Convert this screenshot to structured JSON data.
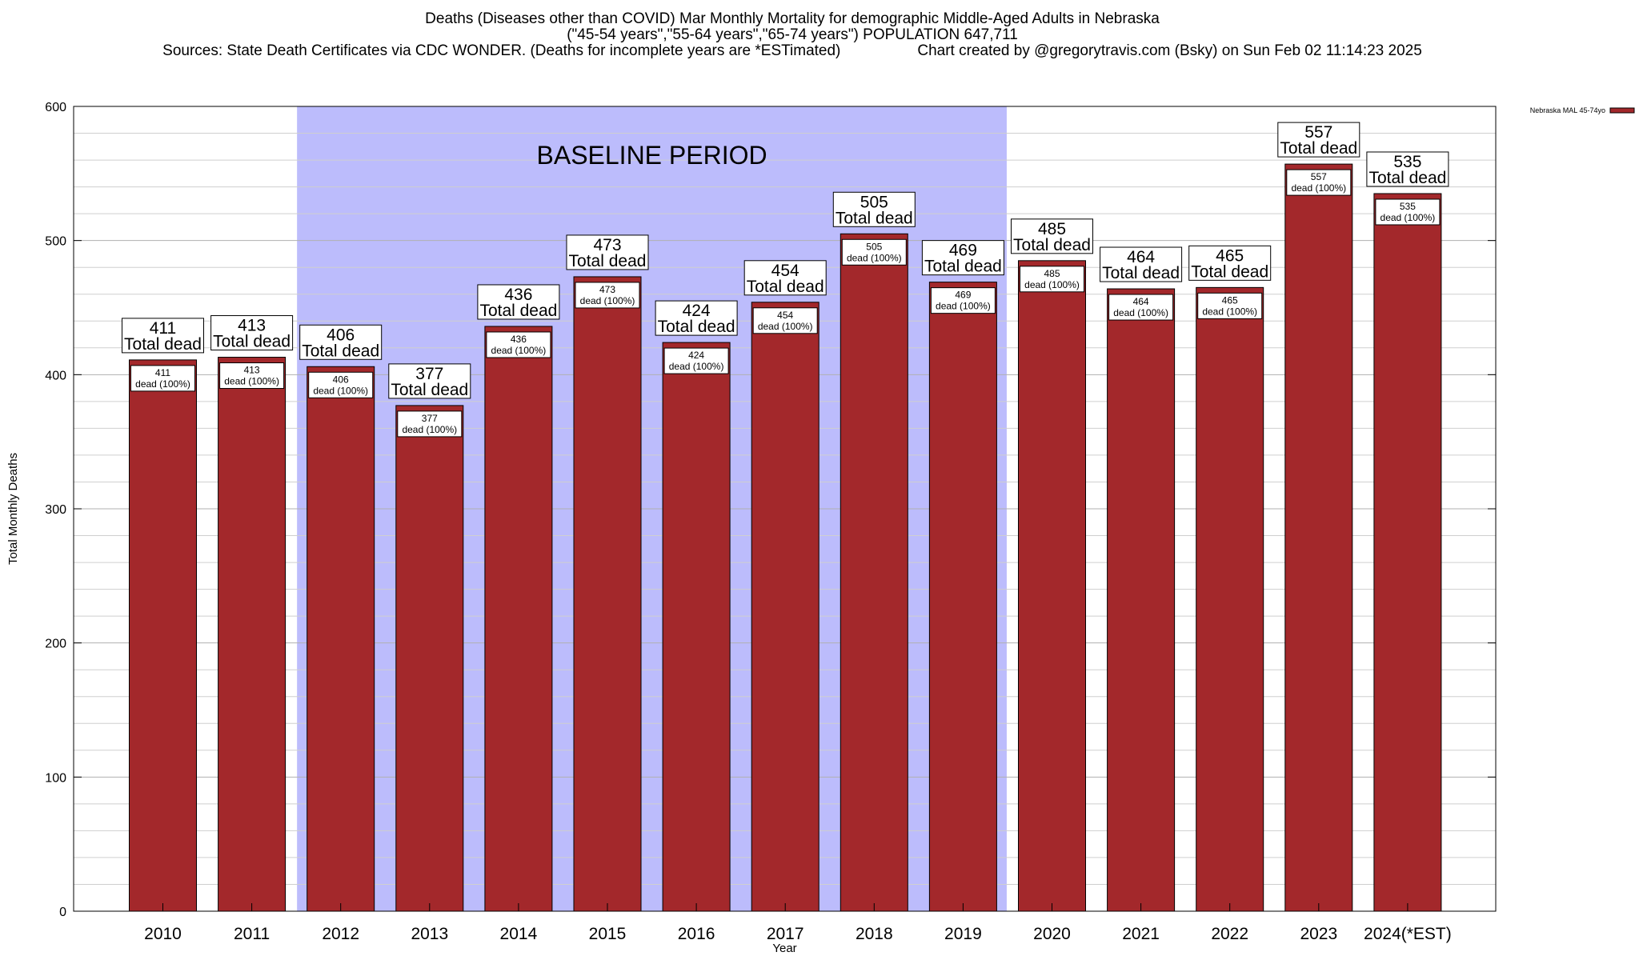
{
  "header": {
    "title": "Deaths (Diseases other than COVID) Mar Monthly Mortality for demographic Middle-Aged Adults in Nebraska",
    "subtitle": "(\"45-54 years\",\"55-64 years\",\"65-74 years\") POPULATION 647,711",
    "sources": "Sources: State Death Certificates via CDC WONDER. (Deaths for incomplete years are *ESTimated)",
    "credit": "Chart created by @gregorytravis.com (Bsky) on Sun Feb 02 11:14:23 2025"
  },
  "chart_data": {
    "type": "bar",
    "xlabel": "Year",
    "ylabel": "Total Monthly Deaths",
    "ylim": [
      0,
      600
    ],
    "yticks": [
      0,
      100,
      200,
      300,
      400,
      500,
      600
    ],
    "grid": true,
    "legend_position": "top-right",
    "categories": [
      "2010",
      "2011",
      "2012",
      "2013",
      "2014",
      "2015",
      "2016",
      "2017",
      "2018",
      "2019",
      "2020",
      "2021",
      "2022",
      "2023",
      "2024(*EST)"
    ],
    "series": [
      {
        "name": "Nebraska MAL 45-74yo",
        "color": "#a3282b",
        "values": [
          411,
          413,
          406,
          377,
          436,
          473,
          424,
          454,
          505,
          469,
          485,
          464,
          465,
          557,
          535
        ]
      }
    ],
    "total_label_suffix": "Total dead",
    "bar_label_suffix": "dead (100%)",
    "shaded_region": {
      "label": "BASELINE PERIOD",
      "start_category": "2012",
      "end_category": "2019",
      "color": "#bcbcfc"
    }
  }
}
